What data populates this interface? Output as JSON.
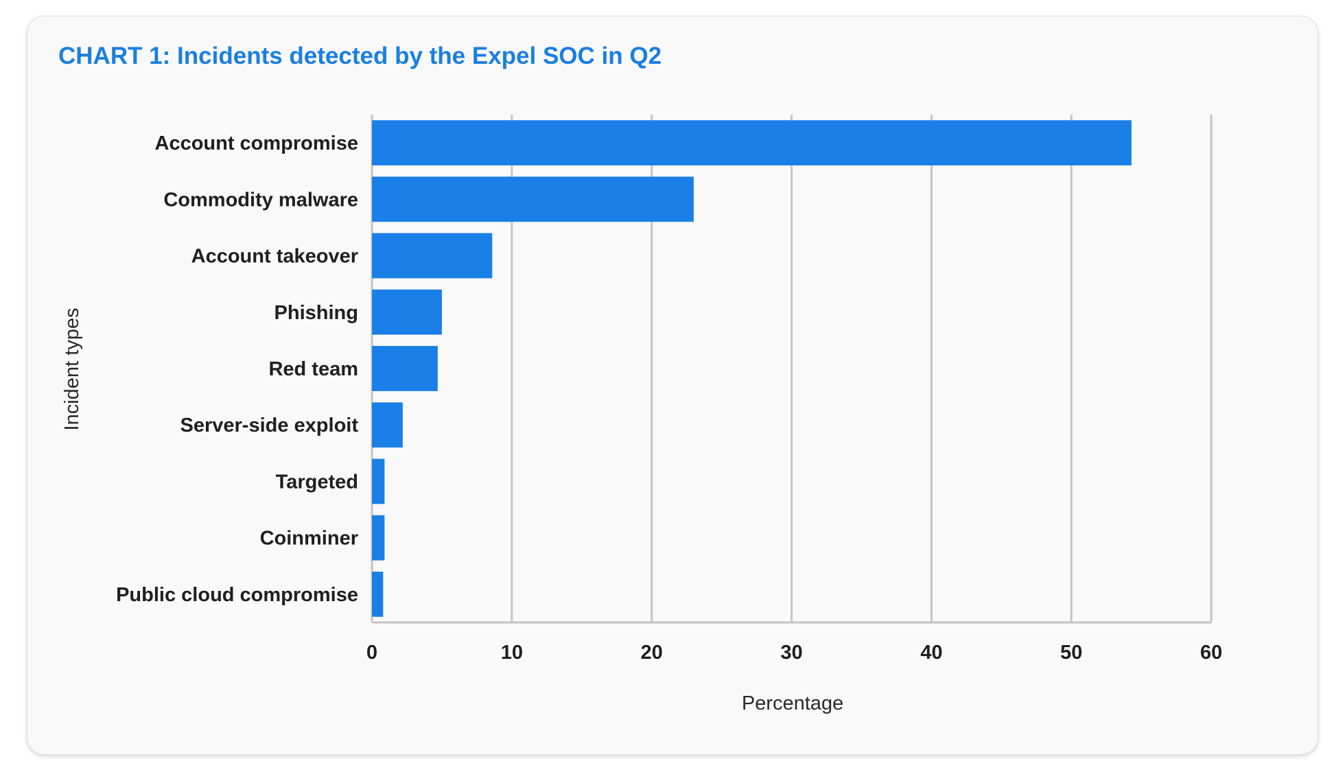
{
  "chart_data": {
    "type": "bar",
    "orientation": "horizontal",
    "title": "CHART 1: Incidents detected by the Expel SOC in Q2",
    "xlabel": "Percentage",
    "ylabel": "Incident types",
    "xlim": [
      0,
      60
    ],
    "xticks": [
      "0",
      "10",
      "20",
      "30",
      "40",
      "50",
      "60"
    ],
    "grid": true,
    "categories": [
      "Account compromise",
      "Commodity malware",
      "Account takeover",
      "Phishing",
      "Red team",
      "Server-side exploit",
      "Targeted",
      "Coinminer",
      "Public cloud compromise"
    ],
    "values": [
      54.3,
      23.0,
      8.6,
      5.0,
      4.7,
      2.2,
      0.9,
      0.9,
      0.8
    ],
    "bar_color": "#1a7fe6"
  },
  "colors": {
    "title": "#1a7fe0",
    "gridline": "#c4c4c4",
    "card_background": "#f9f9f9"
  }
}
